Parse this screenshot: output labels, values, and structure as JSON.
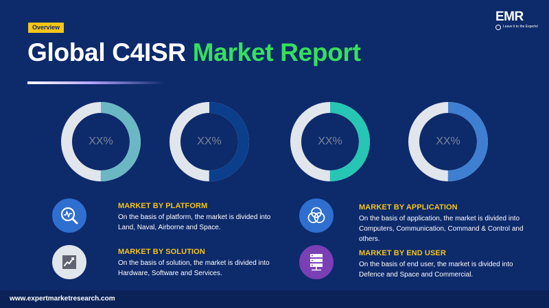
{
  "header": {
    "badge": "Overview",
    "title_main": "Global C4ISR ",
    "title_accent": "Market Report"
  },
  "brand": {
    "logo_text": "EMR",
    "tagline": "Leave it to the Experts!"
  },
  "colors": {
    "background": "#0d2a6b",
    "accent_yellow": "#f5c518",
    "accent_green": "#36e05a",
    "donut_track": "#e1e5ec"
  },
  "donuts": [
    {
      "label": "XX%",
      "fill_fraction": 0.5,
      "color": "#6bb8c4"
    },
    {
      "label": "XX%",
      "fill_fraction": 0.5,
      "color": "#0b3f8c"
    },
    {
      "label": "XX%",
      "fill_fraction": 0.5,
      "color": "#27c6b4"
    },
    {
      "label": "XX%",
      "fill_fraction": 0.5,
      "color": "#3f7fd1"
    }
  ],
  "segments": [
    {
      "icon": "chart-magnifier-icon",
      "heading": "MARKET BY PLATFORM",
      "text": "On the basis of platform, the market is divided into Land, Naval, Airborne and Space."
    },
    {
      "icon": "line-chart-icon",
      "heading": "MARKET BY SOLUTION",
      "text": "On the basis of solution, the market is divided into Hardware, Software and Services."
    },
    {
      "icon": "venn-diagram-icon",
      "heading": "MARKET BY APPLICATION",
      "text": "On the basis of application, the market is divided into Computers, Communication, Command & Control and others."
    },
    {
      "icon": "server-icon",
      "heading": "MARKET BY END USER",
      "text": "On the basis of end user, the market is divided into Defence and Space and Commercial."
    }
  ],
  "footer": {
    "url": "www.expertmarketresearch.com"
  }
}
